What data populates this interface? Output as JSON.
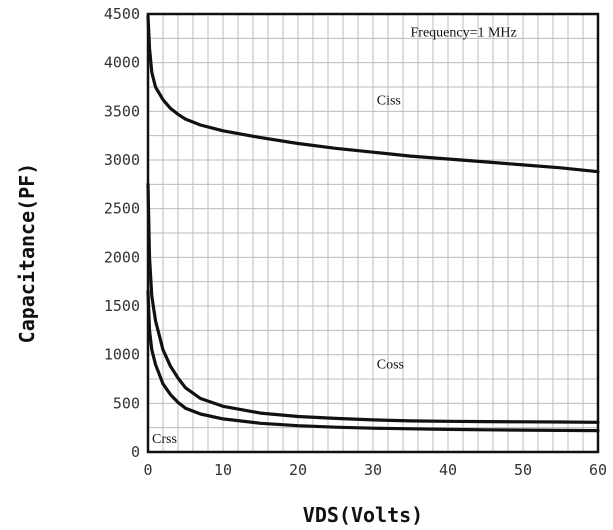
{
  "chart_data": {
    "type": "line",
    "xlabel": "VDS(Volts)",
    "ylabel": "Capacitance(PF)",
    "xlim": [
      0,
      60
    ],
    "ylim": [
      0,
      4500
    ],
    "xticks": [
      "0",
      "10",
      "20",
      "30",
      "40",
      "50",
      "60"
    ],
    "yticks": [
      "0",
      "500",
      "1000",
      "1500",
      "2000",
      "2500",
      "3000",
      "3500",
      "4000",
      "4500"
    ],
    "grid": true,
    "annotations": [
      {
        "text": "Frequency=1 MHz",
        "x": 35,
        "y": 4270
      },
      {
        "text": "Ciss",
        "x": 30.5,
        "y": 3570
      },
      {
        "text": "Coss",
        "x": 30.5,
        "y": 860
      },
      {
        "text": "Crss",
        "x": 0,
        "y": 90
      }
    ],
    "series": [
      {
        "name": "Ciss",
        "x": [
          0,
          0.2,
          0.5,
          1,
          2,
          3,
          4,
          5,
          7,
          10,
          15,
          20,
          25,
          30,
          35,
          40,
          45,
          50,
          55,
          60
        ],
        "y": [
          4480,
          4150,
          3900,
          3750,
          3620,
          3530,
          3470,
          3420,
          3360,
          3300,
          3230,
          3170,
          3120,
          3080,
          3040,
          3010,
          2980,
          2950,
          2920,
          2880
        ]
      },
      {
        "name": "Coss",
        "x": [
          0,
          0.2,
          0.5,
          1,
          2,
          3,
          4,
          5,
          7,
          10,
          15,
          20,
          25,
          30,
          35,
          40,
          45,
          50,
          55,
          60
        ],
        "y": [
          2750,
          2000,
          1600,
          1350,
          1050,
          880,
          760,
          660,
          550,
          470,
          400,
          365,
          345,
          330,
          320,
          315,
          312,
          310,
          308,
          305
        ]
      },
      {
        "name": "Crss",
        "x": [
          0,
          0.2,
          0.5,
          1,
          2,
          3,
          4,
          5,
          7,
          10,
          15,
          20,
          25,
          30,
          35,
          40,
          45,
          50,
          55,
          60
        ],
        "y": [
          1650,
          1250,
          1050,
          900,
          700,
          590,
          510,
          450,
          390,
          340,
          295,
          270,
          255,
          245,
          238,
          232,
          228,
          225,
          222,
          220
        ]
      }
    ]
  }
}
